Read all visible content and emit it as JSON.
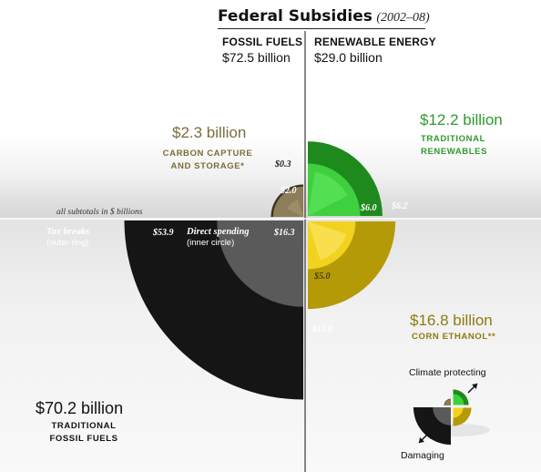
{
  "header": {
    "title": "Federal Subsidies",
    "years": "(2002–08)"
  },
  "columns": {
    "fossil": {
      "heading": "FOSSIL FUELS",
      "amount": "$72.5 billion"
    },
    "renewable": {
      "heading": "RENEWABLE ENERGY",
      "amount": "$29.0 billion"
    }
  },
  "note": "all subtotals in $ billions",
  "quadrants": {
    "ccs": {
      "amount": "$2.3 billion",
      "caption": [
        "CARBON CAPTURE",
        "AND STORAGE*"
      ],
      "tax_label": "$0.3",
      "direct_label": "$2.0"
    },
    "traditional_renewables": {
      "amount": "$12.2 billion",
      "caption": [
        "TRADITIONAL",
        "RENEWABLES"
      ],
      "direct_label": "$6.0",
      "tax_label": "$6.2"
    },
    "fossil": {
      "amount": "$70.2 billion",
      "caption": [
        "TRADITIONAL",
        "FOSSIL FUELS"
      ],
      "tax_head": "Tax breaks",
      "tax_sub": "(outer ring)",
      "tax_label": "$53.9",
      "direct_head": "Direct spending",
      "direct_sub": "(inner circle)",
      "direct_label": "$16.3"
    },
    "ethanol": {
      "amount": "$16.8 billion",
      "caption": [
        "CORN ETHANOL**"
      ],
      "direct_label": "$5.0",
      "tax_label": "$11.8"
    }
  },
  "legend": {
    "top": "Climate protecting",
    "bottom": "Damaging"
  },
  "colors": {
    "fossil_tax": "#151515",
    "fossil_direct": "#5a5a5a",
    "ccs_tax": "#3b3320",
    "ccs_direct": "#8c7e5a",
    "renew_tax": "#1e8a1e",
    "renew_direct": "#3ed03e",
    "ethanol_tax": "#b59a08",
    "ethanol_direct": "#f2d21e",
    "green_text": "#2e9a2e",
    "olive_text": "#7a6d3a",
    "gold_text": "#8e7a10"
  },
  "chart_data": {
    "type": "polar-area",
    "title": "Federal Subsidies (2002–08)",
    "units": "$ billions",
    "groups": [
      {
        "name": "FOSSIL FUELS",
        "total": 72.5
      },
      {
        "name": "RENEWABLE ENERGY",
        "total": 29.0
      }
    ],
    "quadrants": [
      {
        "name": "CARBON CAPTURE AND STORAGE",
        "group": "FOSSIL FUELS",
        "position": "top-left",
        "total": 2.3,
        "tax_breaks": 0.3,
        "direct_spending": 2.0
      },
      {
        "name": "TRADITIONAL RENEWABLES",
        "group": "RENEWABLE ENERGY",
        "position": "top-right",
        "total": 12.2,
        "tax_breaks": 6.2,
        "direct_spending": 6.0
      },
      {
        "name": "TRADITIONAL FOSSIL FUELS",
        "group": "FOSSIL FUELS",
        "position": "bottom-left",
        "total": 70.2,
        "tax_breaks": 53.9,
        "direct_spending": 16.3
      },
      {
        "name": "CORN ETHANOL",
        "group": "RENEWABLE ENERGY",
        "position": "bottom-right",
        "total": 16.8,
        "tax_breaks": 11.8,
        "direct_spending": 5.0
      }
    ],
    "encoding": "outer ring = tax breaks, inner circle = direct spending"
  }
}
